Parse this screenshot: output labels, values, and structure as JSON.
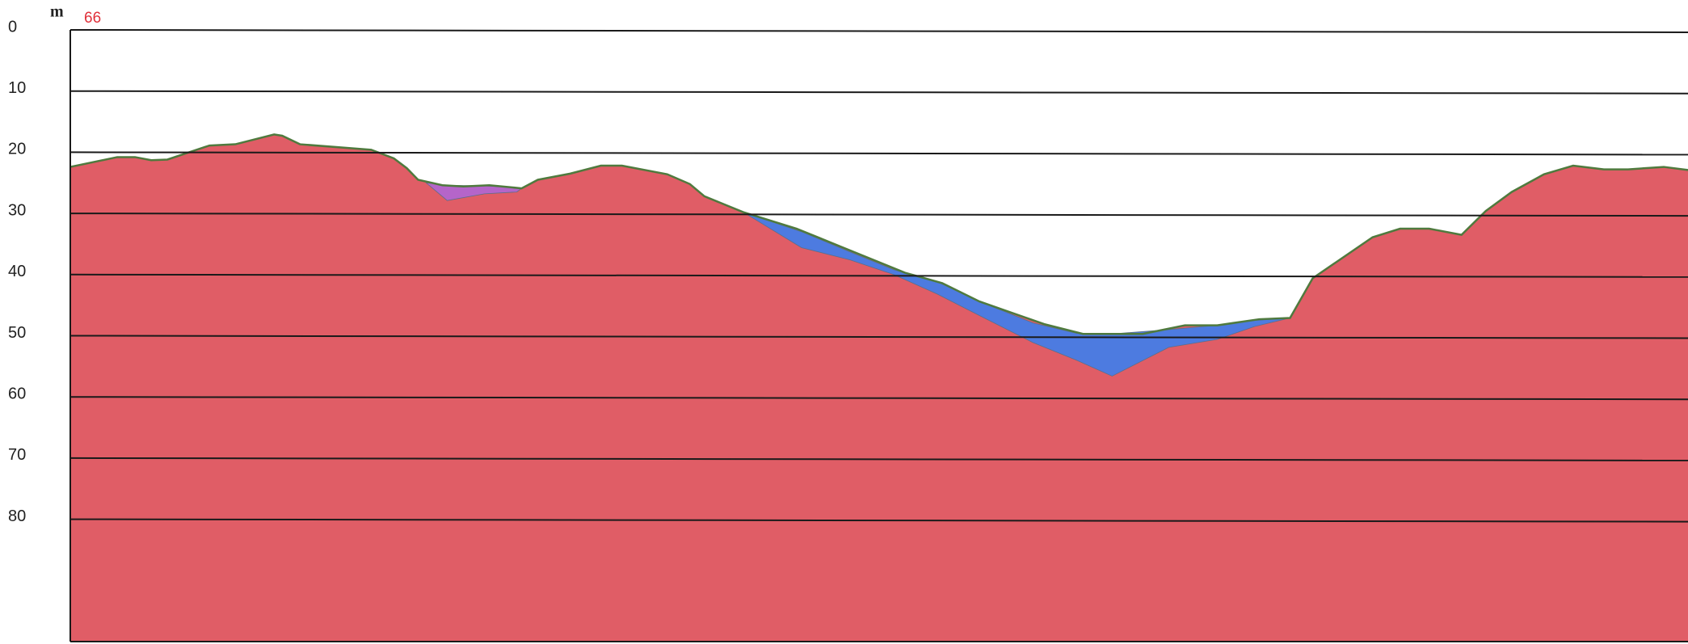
{
  "chart_data": {
    "type": "profile",
    "y_label": "m",
    "annotation": "66",
    "ylim": [
      0,
      100
    ],
    "yticks": [
      0,
      10,
      20,
      30,
      40,
      50,
      60,
      70,
      80
    ],
    "xlim": [
      0,
      100
    ],
    "grid": true,
    "surface": {
      "color": "#e05d66",
      "line_color": "#4f7a3e",
      "x": [
        0,
        2.9,
        4.0,
        5.0,
        6.0,
        8.6,
        10.2,
        12.6,
        13.1,
        14.2,
        18.6,
        20.0,
        20.8,
        21.5,
        23.0,
        24.3,
        25.9,
        27.9,
        28.9,
        30.9,
        32.8,
        34.1,
        36.9,
        38.3,
        39.2,
        41.6,
        44.9,
        47.6,
        51.6,
        53.9,
        56.2,
        60.2,
        62.6,
        66.3,
        68.9,
        70.9,
        73.5,
        75.4,
        76.8,
        80.5,
        82.2,
        84.0,
        86.0,
        87.5,
        89.1,
        91.1,
        92.9,
        94.8,
        96.3,
        98.5,
        100
      ],
      "values": [
        22.4,
        20.8,
        20.8,
        21.3,
        21.2,
        18.9,
        18.7,
        17.1,
        17.3,
        18.7,
        19.6,
        21.0,
        22.6,
        24.5,
        25.4,
        25.6,
        25.4,
        25.9,
        24.5,
        23.5,
        22.2,
        22.2,
        23.6,
        25.2,
        27.2,
        29.8,
        32.5,
        35.4,
        39.7,
        41.4,
        44.4,
        48.1,
        49.7,
        49.7,
        48.3,
        48.3,
        47.3,
        47.1,
        40.6,
        33.9,
        32.5,
        32.5,
        33.5,
        29.6,
        26.5,
        23.6,
        22.2,
        22.8,
        22.8,
        22.4,
        22.9
      ]
    },
    "layers": [
      {
        "color": "#b565c9",
        "x": [
          22.0,
          23.3,
          25.6,
          27.6,
          27.9
        ],
        "top": [
          25.0,
          25.4,
          25.5,
          25.8,
          25.9
        ],
        "bottom": [
          25.0,
          27.9,
          26.8,
          26.5,
          25.9
        ]
      },
      {
        "color": "#4d7be0",
        "x": [
          41.6,
          45.2,
          48.2,
          50.9,
          53.6,
          56.2,
          59.5,
          62.2,
          64.4,
          67.9,
          70.9,
          73.2,
          75.4
        ],
        "top": [
          29.8,
          33.0,
          36.3,
          39.2,
          41.2,
          44.4,
          47.9,
          49.6,
          49.7,
          49.0,
          48.3,
          47.5,
          47.1
        ],
        "bottom": [
          29.8,
          35.6,
          37.6,
          40.0,
          43.2,
          46.7,
          51.1,
          54.0,
          56.6,
          51.9,
          50.6,
          48.5,
          47.1
        ]
      }
    ]
  }
}
